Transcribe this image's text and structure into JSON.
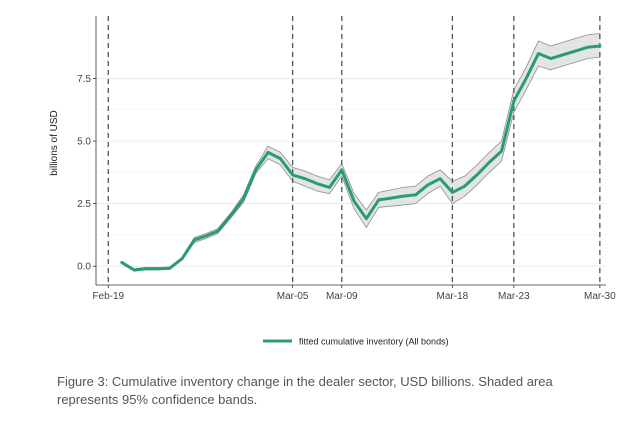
{
  "chart_data": {
    "type": "line",
    "ylabel": "billions of USD",
    "xlabel": "",
    "ylim": [
      -0.75,
      10.0
    ],
    "xlim": [
      -1.0,
      40.5
    ],
    "yticks": [
      0.0,
      2.5,
      5.0,
      7.5
    ],
    "ytick_labels": [
      "0.0",
      "2.5",
      "5.0",
      "7.5"
    ],
    "xticks": [
      {
        "label": "Feb-19",
        "x": 0
      },
      {
        "label": "Mar-05",
        "x": 15
      },
      {
        "label": "Mar-09",
        "x": 19
      },
      {
        "label": "Mar-18",
        "x": 28
      },
      {
        "label": "Mar-23",
        "x": 33
      },
      {
        "label": "Mar-30",
        "x": 40
      }
    ],
    "vlines": [
      0,
      15,
      19,
      28,
      33,
      40
    ],
    "grid": true,
    "legend_position": "bottom",
    "series": [
      {
        "name": "fitted cumulative inventory (All bonds)",
        "color": "#2a9d6e",
        "band_color": "#e3e5e4",
        "x": [
          1.1,
          2.1,
          3.0,
          4.0,
          5.0,
          6.0,
          7.0,
          7.9,
          8.9,
          10.0,
          11.0,
          12.0,
          13.0,
          14.0,
          15.0,
          16.0,
          17.0,
          18.0,
          19.0,
          20.0,
          21.0,
          22.0,
          23.0,
          24.0,
          25.0,
          26.0,
          27.0,
          28.0,
          29.0,
          30.0,
          31.0,
          32.0,
          33.0,
          34.0,
          35.0,
          36.0,
          37.0,
          38.0,
          39.0,
          40.0
        ],
        "y": [
          0.15,
          -0.15,
          -0.1,
          -0.1,
          -0.08,
          0.3,
          1.05,
          1.2,
          1.4,
          2.05,
          2.7,
          3.85,
          4.55,
          4.3,
          3.65,
          3.5,
          3.3,
          3.15,
          3.85,
          2.6,
          1.9,
          2.65,
          2.72,
          2.8,
          2.85,
          3.25,
          3.5,
          2.95,
          3.2,
          3.65,
          4.15,
          4.6,
          6.6,
          7.5,
          8.5,
          8.3,
          8.45,
          8.6,
          8.75,
          8.8
        ],
        "lower": [
          0.1,
          -0.2,
          -0.15,
          -0.15,
          -0.13,
          0.25,
          0.95,
          1.1,
          1.3,
          1.95,
          2.55,
          3.7,
          4.3,
          4.05,
          3.4,
          3.2,
          3.0,
          2.9,
          3.6,
          2.3,
          1.55,
          2.35,
          2.4,
          2.45,
          2.5,
          2.9,
          3.2,
          2.5,
          2.8,
          3.25,
          3.75,
          4.2,
          6.15,
          7.05,
          8.0,
          7.85,
          8.0,
          8.15,
          8.3,
          8.35
        ],
        "upper": [
          0.2,
          -0.1,
          -0.05,
          -0.05,
          -0.03,
          0.35,
          1.15,
          1.3,
          1.5,
          2.15,
          2.85,
          4.0,
          4.8,
          4.55,
          3.95,
          3.8,
          3.6,
          3.45,
          4.1,
          2.9,
          2.25,
          2.95,
          3.05,
          3.15,
          3.2,
          3.6,
          3.85,
          3.4,
          3.6,
          4.05,
          4.55,
          5.0,
          7.05,
          7.95,
          9.0,
          8.8,
          8.95,
          9.1,
          9.25,
          9.3
        ]
      }
    ]
  },
  "legend": {
    "label": "fitted cumulative inventory (All bonds)"
  },
  "caption": "Figure 3: Cumulative inventory change in the dealer sector, USD billions. Shaded area represents 95% confidence bands."
}
